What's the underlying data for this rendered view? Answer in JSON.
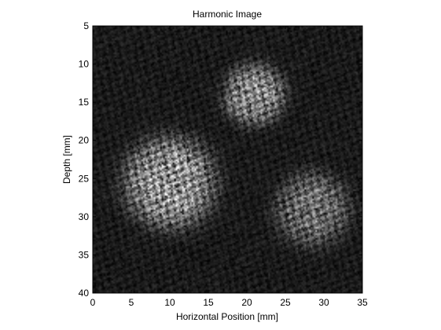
{
  "chart_data": {
    "type": "heatmap",
    "title": "Harmonic Image",
    "xlabel": "Horizontal Position [mm]",
    "ylabel": "Depth [mm]",
    "xlim": [
      0,
      35
    ],
    "ylim": [
      40,
      5
    ],
    "y_direction": "increasing-downward",
    "xticks": [
      0,
      5,
      10,
      15,
      20,
      25,
      30,
      35
    ],
    "yticks": [
      5,
      10,
      15,
      20,
      25,
      30,
      35,
      40
    ],
    "colormap": "grayscale",
    "regions": [
      {
        "center_x": 21,
        "center_y": 14,
        "radius": 4.2,
        "intensity": 0.75
      },
      {
        "center_x": 10,
        "center_y": 25.5,
        "radius": 6.2,
        "intensity": 0.85
      },
      {
        "center_x": 28.5,
        "center_y": 29,
        "radius": 5,
        "intensity": 0.6
      }
    ],
    "background_intensity": 0.15
  },
  "colors": {
    "background": "#ffffff",
    "axes_frame": "#000000",
    "image_dark": "#000000",
    "image_bright": "#ffffff"
  }
}
